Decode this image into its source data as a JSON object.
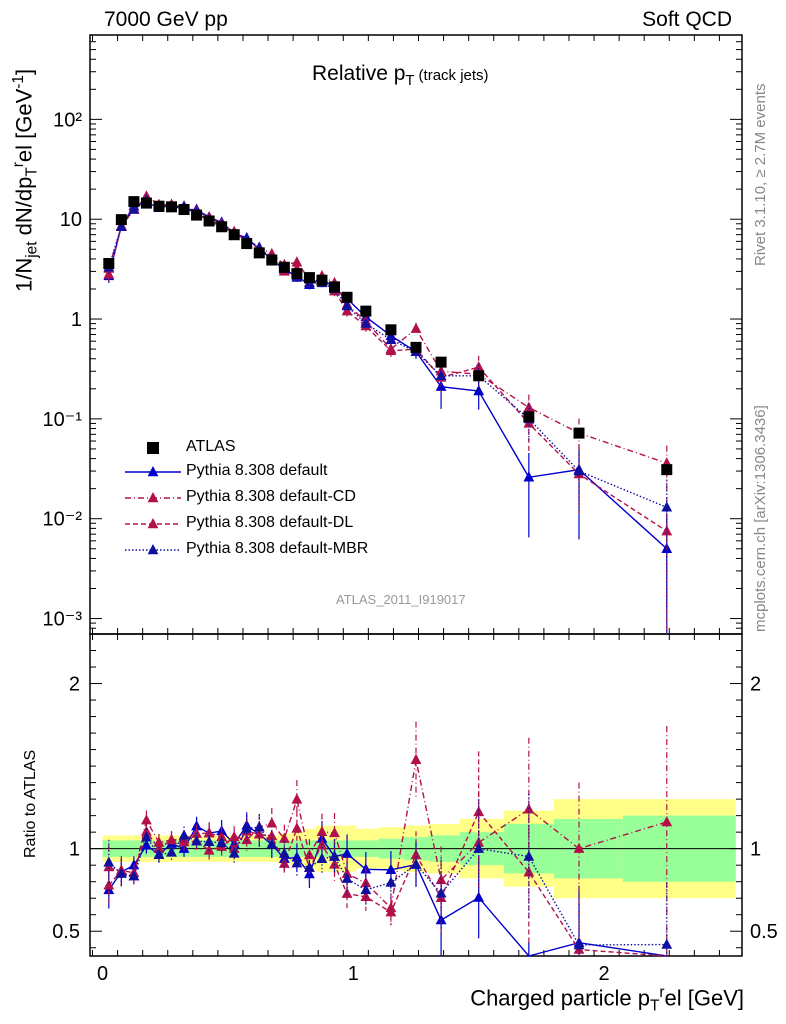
{
  "header": {
    "left": "7000 GeV pp",
    "right": "Soft QCD"
  },
  "side_labels": {
    "top": "Rivet 3.1.10, ≥ 2.7M events",
    "bottom": "mcplots.cern.ch [arXiv:1306.3436]"
  },
  "analysis_id": "ATLAS_2011_I919017",
  "title_main": "Relative p",
  "title_sub": "T",
  "title_note": " (track jets)",
  "ylabel_text": "1/N",
  "ylabel_sub1": "jet",
  "ylabel_mid": " dN/dp",
  "ylabel_sub2": "T",
  "ylabel_sup2": "r",
  "ylabel_tail": "el [GeV",
  "ylabel_sup3": "-1",
  "ylabel_end": "]",
  "ratio_ylabel": "Ratio to ATLAS",
  "xlabel_text": "Charged particle p",
  "xlabel_sub": "T",
  "xlabel_sup": "r",
  "xlabel_tail": "el [GeV]",
  "colors": {
    "data": "#000000",
    "default": "#0000cc",
    "cd": "#b3104a",
    "dl": "#b3104a",
    "mbr": "#1010a0",
    "band_inner": "#99ff99",
    "band_outer": "#ffff88"
  },
  "chart_data": {
    "type": "scatter",
    "x": [
      0.025,
      0.075,
      0.125,
      0.175,
      0.225,
      0.275,
      0.325,
      0.375,
      0.425,
      0.475,
      0.525,
      0.575,
      0.625,
      0.675,
      0.725,
      0.775,
      0.825,
      0.875,
      0.925,
      0.975,
      1.05,
      1.15,
      1.25,
      1.35,
      1.5,
      1.7,
      1.9,
      2.25
    ],
    "xlim": [
      -0.05,
      2.55
    ],
    "ylim_main": [
      0.0007,
      700
    ],
    "ylim_ratio": [
      0.35,
      2.3
    ],
    "yscale_main": "log",
    "xticks": [
      "0",
      "1",
      "2"
    ],
    "yticks_main": [
      "10⁻³",
      "10⁻²",
      "10⁻¹",
      "1",
      "10",
      "10²"
    ],
    "yticks_ratio": [
      "0.5",
      "1",
      "2"
    ],
    "legend_position": "lower-left",
    "series": [
      {
        "name": "ATLAS",
        "style": "data",
        "values": [
          3.6,
          9.9,
          15.0,
          14.5,
          13.5,
          13.3,
          12.5,
          11.0,
          9.6,
          8.4,
          7.0,
          5.7,
          4.6,
          3.9,
          3.3,
          2.85,
          2.6,
          2.45,
          2.1,
          1.65,
          1.2,
          0.78,
          0.52,
          0.37,
          0.27,
          0.105,
          0.072,
          0.031
        ],
        "band_inner": [
          0.05,
          0.05,
          0.05,
          0.05,
          0.05,
          0.05,
          0.05,
          0.05,
          0.05,
          0.05,
          0.05,
          0.05,
          0.05,
          0.05,
          0.05,
          0.05,
          0.05,
          0.05,
          0.05,
          0.05,
          0.05,
          0.06,
          0.07,
          0.08,
          0.1,
          0.15,
          0.18,
          0.2
        ],
        "band_outer": [
          0.08,
          0.08,
          0.08,
          0.08,
          0.08,
          0.08,
          0.08,
          0.08,
          0.08,
          0.08,
          0.08,
          0.08,
          0.08,
          0.08,
          0.09,
          0.1,
          0.12,
          0.14,
          0.14,
          0.14,
          0.12,
          0.13,
          0.14,
          0.15,
          0.18,
          0.23,
          0.3,
          0.3
        ]
      },
      {
        "name": "Pythia 8.308 default",
        "style": "solid",
        "values": [
          2.7,
          8.5,
          13.5,
          14.8,
          13.0,
          13.7,
          12.5,
          12.5,
          10.5,
          9.3,
          7.2,
          6.5,
          5.0,
          4.0,
          3.1,
          2.7,
          2.2,
          2.6,
          2.0,
          1.6,
          1.05,
          0.68,
          0.47,
          0.21,
          0.19,
          0.026,
          0.031,
          0.005
        ],
        "errors": [
          0.15,
          0.1,
          0.06,
          0.05,
          0.05,
          0.05,
          0.05,
          0.05,
          0.06,
          0.06,
          0.06,
          0.07,
          0.07,
          0.08,
          0.08,
          0.09,
          0.1,
          0.1,
          0.11,
          0.12,
          0.12,
          0.13,
          0.15,
          0.4,
          0.35,
          0.75,
          0.8,
          1.2
        ]
      },
      {
        "name": "Pythia 8.308 default-CD",
        "style": "dash-dot",
        "values": [
          3.2,
          8.5,
          12.5,
          17.0,
          14.0,
          14.0,
          13.0,
          11.5,
          9.5,
          8.5,
          7.5,
          6.0,
          5.2,
          4.5,
          3.5,
          3.7,
          2.5,
          2.7,
          2.3,
          1.4,
          0.95,
          0.5,
          0.8,
          0.3,
          0.28,
          0.13,
          0.072,
          0.036
        ],
        "errors": [
          0.15,
          0.1,
          0.06,
          0.05,
          0.05,
          0.05,
          0.05,
          0.05,
          0.06,
          0.06,
          0.06,
          0.07,
          0.07,
          0.08,
          0.08,
          0.09,
          0.1,
          0.1,
          0.11,
          0.12,
          0.12,
          0.13,
          0.15,
          0.25,
          0.3,
          0.35,
          0.4,
          0.5
        ]
      },
      {
        "name": "Pythia 8.308 default-DL",
        "style": "dashed",
        "values": [
          2.8,
          8.6,
          12.8,
          16.0,
          13.5,
          14.0,
          13.2,
          12.0,
          10.5,
          9.0,
          7.0,
          6.3,
          5.0,
          4.2,
          3.0,
          3.2,
          2.3,
          2.5,
          1.9,
          1.2,
          0.85,
          0.48,
          0.5,
          0.26,
          0.33,
          0.09,
          0.028,
          0.0075
        ],
        "errors": [
          0.15,
          0.1,
          0.06,
          0.05,
          0.05,
          0.05,
          0.05,
          0.05,
          0.06,
          0.06,
          0.06,
          0.07,
          0.07,
          0.08,
          0.08,
          0.09,
          0.1,
          0.1,
          0.11,
          0.12,
          0.12,
          0.13,
          0.15,
          0.3,
          0.3,
          0.5,
          0.6,
          1.2
        ]
      },
      {
        "name": "Pythia 8.308 default-MBR",
        "style": "dotted",
        "values": [
          3.3,
          8.4,
          12.5,
          15.5,
          13.0,
          13.0,
          13.5,
          11.5,
          10.0,
          8.7,
          6.8,
          6.4,
          5.2,
          4.0,
          3.2,
          2.6,
          2.3,
          2.3,
          2.0,
          1.35,
          0.9,
          0.62,
          0.47,
          0.27,
          0.27,
          0.1,
          0.03,
          0.013
        ],
        "errors": [
          0.15,
          0.1,
          0.06,
          0.05,
          0.05,
          0.05,
          0.05,
          0.05,
          0.06,
          0.06,
          0.06,
          0.07,
          0.07,
          0.08,
          0.08,
          0.09,
          0.1,
          0.1,
          0.11,
          0.12,
          0.12,
          0.13,
          0.15,
          0.3,
          0.3,
          0.4,
          0.6,
          0.9
        ]
      }
    ]
  }
}
